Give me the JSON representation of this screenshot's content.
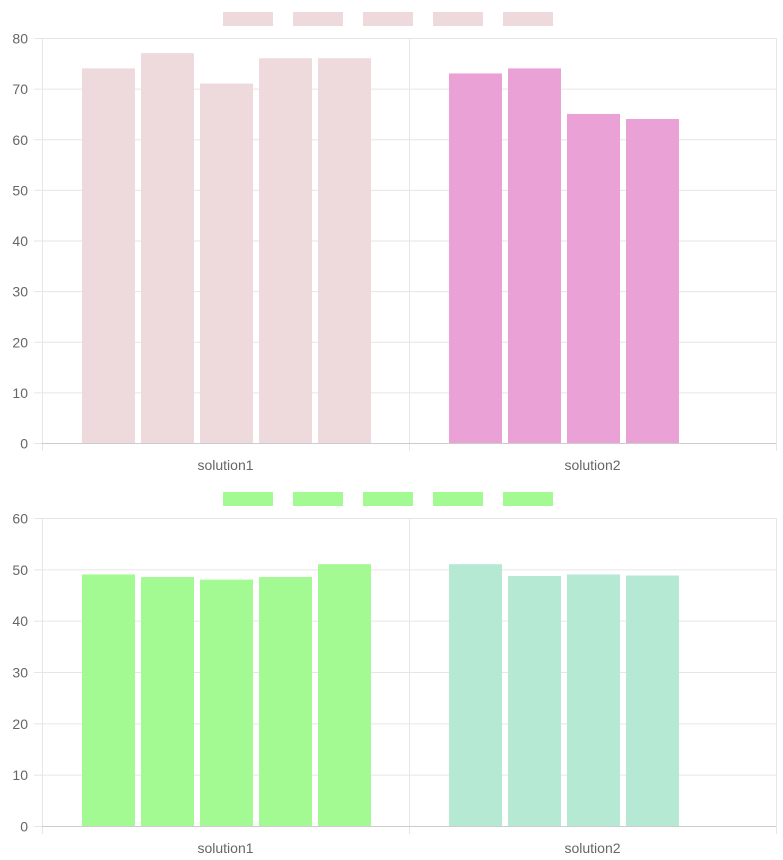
{
  "chart_data": [
    {
      "type": "bar",
      "categories": [
        "solution1",
        "solution2"
      ],
      "ylim": [
        0,
        80
      ],
      "yticks": [
        0,
        10,
        20,
        30,
        40,
        50,
        60,
        70,
        80
      ],
      "legend_items": 5,
      "legend_color": "#eed9dd",
      "grid": true,
      "colors": {
        "faded": "#eed9dd",
        "solution2": "#eaa1d6"
      },
      "series": [
        {
          "name": "",
          "values": [
            74,
            73
          ]
        },
        {
          "name": "",
          "values": [
            77,
            74
          ]
        },
        {
          "name": "",
          "values": [
            71,
            65
          ]
        },
        {
          "name": "",
          "values": [
            76,
            64
          ]
        },
        {
          "name": "",
          "values": [
            76,
            null
          ]
        }
      ],
      "highlighted_category": "solution2"
    },
    {
      "type": "bar",
      "categories": [
        "solution1",
        "solution2"
      ],
      "ylim": [
        0,
        60
      ],
      "yticks": [
        0,
        10,
        20,
        30,
        40,
        50,
        60
      ],
      "legend_items": 5,
      "legend_color": "#a4fa92",
      "grid": true,
      "colors": {
        "solution1": "#a4fa92",
        "solution2": "#b6e9d4"
      },
      "series": [
        {
          "name": "",
          "values": [
            49,
            51
          ]
        },
        {
          "name": "",
          "values": [
            48.5,
            48.7
          ]
        },
        {
          "name": "",
          "values": [
            48,
            49
          ]
        },
        {
          "name": "",
          "values": [
            48.5,
            48.8
          ]
        },
        {
          "name": "",
          "values": [
            51,
            null
          ]
        }
      ]
    }
  ]
}
